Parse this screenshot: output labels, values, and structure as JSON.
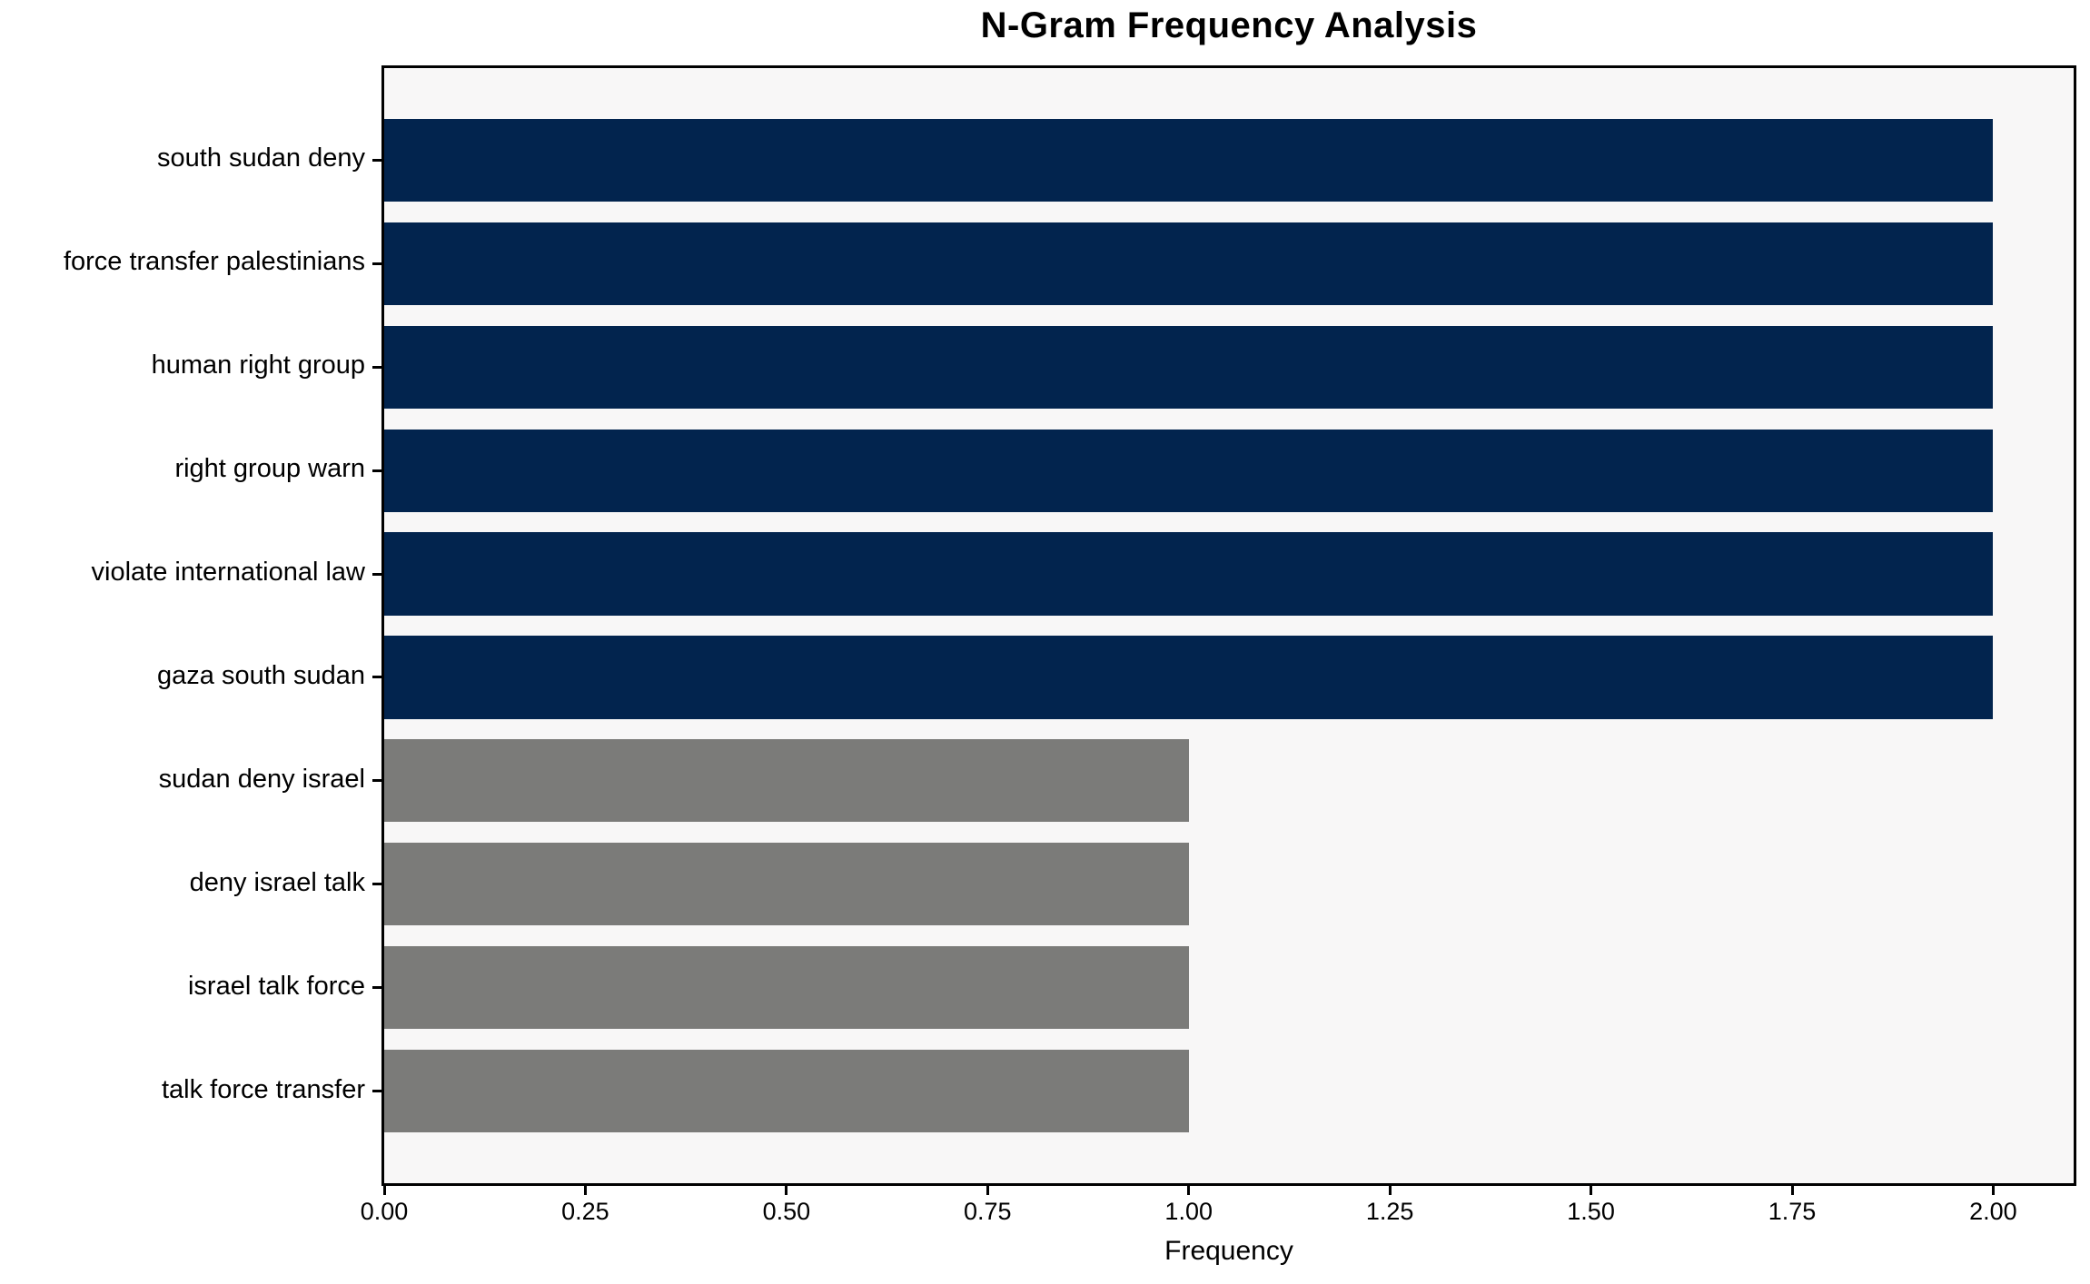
{
  "chart_data": {
    "type": "bar",
    "orientation": "horizontal",
    "title": "N-Gram Frequency Analysis",
    "xlabel": "Frequency",
    "ylabel": "",
    "categories": [
      "south sudan deny",
      "force transfer palestinians",
      "human right group",
      "right group warn",
      "violate international law",
      "gaza south sudan",
      "sudan deny israel",
      "deny israel talk",
      "israel talk force",
      "talk force transfer"
    ],
    "values": [
      2,
      2,
      2,
      2,
      2,
      2,
      1,
      1,
      1,
      1
    ],
    "bar_colors": [
      "#02244E",
      "#02244E",
      "#02244E",
      "#02244E",
      "#02244E",
      "#02244E",
      "#7B7B79",
      "#7B7B79",
      "#7B7B79",
      "#7B7B79"
    ],
    "xlim": [
      0,
      2.1
    ],
    "xtick_values": [
      0,
      0.25,
      0.5,
      0.75,
      1.0,
      1.25,
      1.5,
      1.75,
      2.0
    ],
    "xtick_labels": [
      "0.00",
      "0.25",
      "0.50",
      "0.75",
      "1.00",
      "1.25",
      "1.50",
      "1.75",
      "2.00"
    ],
    "grid": false,
    "legend": null,
    "colors": {
      "bar_high": "#02244E",
      "bar_low": "#7B7B79",
      "plot_background": "#F8F7F7",
      "figure_background": "#FFFFFF",
      "spine": "#000000",
      "text": "#000000"
    }
  }
}
